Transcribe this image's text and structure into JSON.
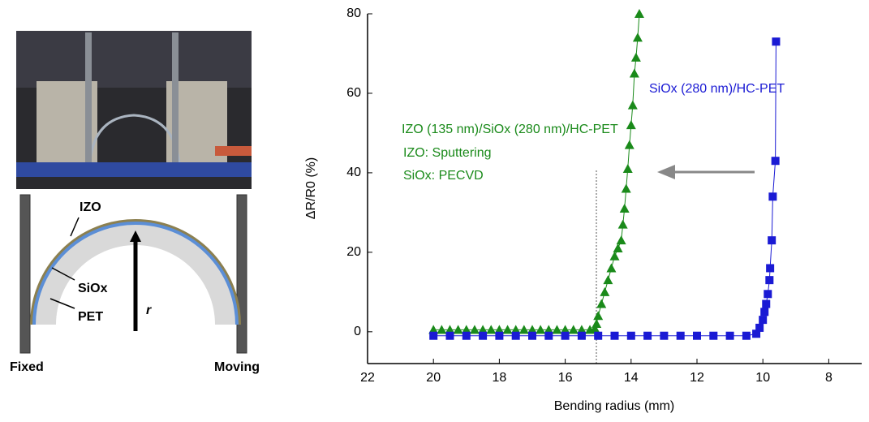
{
  "chart_data": {
    "type": "scatter",
    "x_label": "Bending radius (mm)",
    "y_label": "ΔR/R0 (%)",
    "xlim": [
      22,
      7
    ],
    "ylim": [
      -8,
      80
    ],
    "xticks": [
      22,
      20,
      18,
      16,
      14,
      12,
      10,
      8
    ],
    "yticks": [
      0,
      20,
      40,
      60,
      80
    ],
    "series": [
      {
        "name": "IZO (135 nm)/SiOx (280 nm)/HC-PET",
        "color": "#1a8a1a",
        "marker": "triangle",
        "x": [
          20,
          19.75,
          19.5,
          19.25,
          19,
          18.75,
          18.5,
          18.25,
          18,
          17.75,
          17.5,
          17.25,
          17,
          16.75,
          16.5,
          16.25,
          16,
          15.75,
          15.5,
          15.25,
          15.1,
          15.05,
          15.0,
          14.9,
          14.8,
          14.7,
          14.6,
          14.5,
          14.4,
          14.3,
          14.25,
          14.2,
          14.15,
          14.1,
          14.05,
          14.0,
          13.95,
          13.9,
          13.85,
          13.8,
          13.75
        ],
        "values": [
          0.5,
          0.5,
          0.5,
          0.5,
          0.5,
          0.5,
          0.5,
          0.5,
          0.5,
          0.5,
          0.5,
          0.5,
          0.5,
          0.5,
          0.5,
          0.5,
          0.5,
          0.5,
          0.5,
          0.5,
          0.8,
          2,
          4,
          7,
          10,
          13,
          16,
          19,
          21,
          23,
          27,
          31,
          36,
          41,
          47,
          52,
          57,
          65,
          69,
          74,
          80
        ]
      },
      {
        "name": "SiOx (280 nm)/HC-PET",
        "color": "#1a1ad4",
        "marker": "square",
        "x": [
          20,
          19.5,
          19,
          18.5,
          18,
          17.5,
          17,
          16.5,
          16,
          15.5,
          15,
          14.5,
          14,
          13.5,
          13,
          12.5,
          12,
          11.5,
          11,
          10.5,
          10.2,
          10.1,
          10.0,
          9.95,
          9.9,
          9.85,
          9.8,
          9.78,
          9.73,
          9.7,
          9.62,
          9.6
        ],
        "values": [
          -1,
          -1,
          -1,
          -1,
          -1,
          -1,
          -1,
          -1,
          -1,
          -1,
          -1,
          -1,
          -1,
          -1,
          -1,
          -1,
          -1,
          -1,
          -1,
          -1,
          -0.5,
          1,
          3,
          5,
          7,
          9.5,
          13,
          16,
          23,
          34,
          43,
          73
        ]
      }
    ],
    "annotations": [
      "IZO: Sputtering",
      "SiOx: PECVD"
    ]
  },
  "figure_labels": {
    "izo": "IZO",
    "siox": "SiOx",
    "pet": "PET",
    "radius": "r",
    "fixed": "Fixed",
    "moving": "Moving"
  }
}
